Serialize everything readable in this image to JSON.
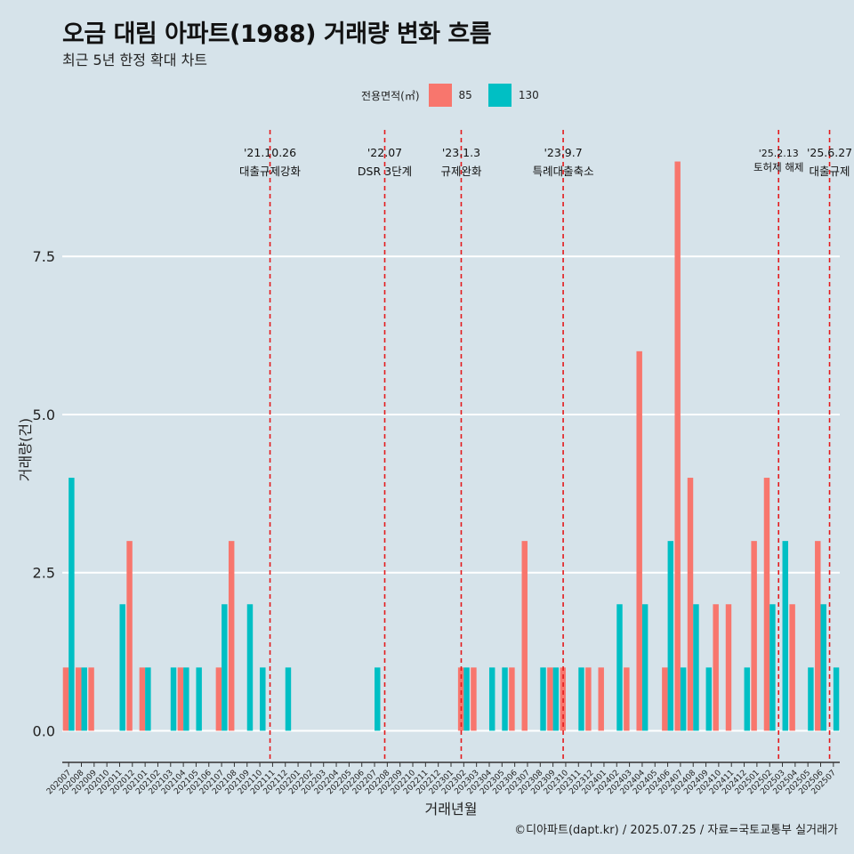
{
  "title": "오금 대림 아파트(1988) 거래량 변화 흐름",
  "subtitle": "최근 5년 한정 확대 차트",
  "caption": "©디아파트(dapt.kr) / 2025.07.25 / 자료=국토교통부 실거래가",
  "legend": {
    "title": "전용면적(㎡)",
    "items": [
      {
        "label": "85",
        "color": "#f8766d"
      },
      {
        "label": "130",
        "color": "#00bfc4"
      }
    ]
  },
  "chart_data": {
    "type": "bar",
    "xlabel": "거래년월",
    "ylabel": "거래량(건)",
    "ylim": [
      -0.5,
      9.5
    ],
    "yticks": [
      "0.0",
      "2.5",
      "5.0",
      "7.5"
    ],
    "ytick_values": [
      0,
      2.5,
      5,
      7.5
    ],
    "grid": true,
    "categories": [
      "202007",
      "202008",
      "202009",
      "202010",
      "202011",
      "202012",
      "202101",
      "202102",
      "202103",
      "202104",
      "202105",
      "202106",
      "202107",
      "202108",
      "202109",
      "202110",
      "202111",
      "202112",
      "202201",
      "202202",
      "202203",
      "202204",
      "202205",
      "202206",
      "202207",
      "202208",
      "202209",
      "202210",
      "202211",
      "202212",
      "202301",
      "202302",
      "202303",
      "202304",
      "202305",
      "202306",
      "202307",
      "202308",
      "202309",
      "202310",
      "202311",
      "202312",
      "202401",
      "202402",
      "202403",
      "202404",
      "202405",
      "202406",
      "202407",
      "202408",
      "202409",
      "202410",
      "202411",
      "202412",
      "202501",
      "202502",
      "202503",
      "202504",
      "202505",
      "202506",
      "202507"
    ],
    "tick_labels": [
      "202007",
      "202008",
      "202009",
      "202010",
      "202011",
      "202012",
      "202101",
      "202102",
      "202103",
      "202104",
      "202105",
      "202106",
      "202107",
      "202108",
      "202109",
      "202110",
      "202111",
      "202112",
      "202201",
      "202202",
      "202203",
      "202204",
      "202205",
      "202206",
      "202207",
      "202208",
      "202209",
      "202210",
      "202211",
      "202212",
      "202301",
      "202302",
      "202303",
      "202304",
      "202305",
      "202306",
      "202307",
      "202308",
      "202309",
      "202310",
      "202311",
      "202312",
      "202401",
      "202402",
      "202403",
      "202404",
      "202405",
      "202406",
      "202407",
      "202408",
      "202409",
      "202410",
      "202411",
      "202412",
      "202501",
      "202502",
      "202503",
      "202504",
      "202505",
      "202506",
      "202507"
    ],
    "series": [
      {
        "name": "85",
        "color": "#f8766d",
        "values": [
          1,
          1,
          1,
          0,
          0,
          3,
          1,
          0,
          0,
          1,
          0,
          0,
          1,
          3,
          0,
          0,
          0,
          0,
          0,
          0,
          0,
          0,
          0,
          0,
          0,
          0,
          0,
          0,
          0,
          0,
          0,
          1,
          1,
          0,
          0,
          1,
          3,
          0,
          1,
          1,
          0,
          1,
          1,
          0,
          1,
          6,
          0,
          1,
          9,
          4,
          0,
          2,
          2,
          0,
          3,
          4,
          0,
          2,
          0,
          3,
          0
        ]
      },
      {
        "name": "130",
        "color": "#00bfc4",
        "values": [
          4,
          1,
          0,
          0,
          2,
          0,
          1,
          0,
          1,
          1,
          1,
          0,
          2,
          0,
          2,
          1,
          0,
          1,
          0,
          0,
          0,
          0,
          0,
          0,
          1,
          0,
          0,
          0,
          0,
          0,
          0,
          1,
          0,
          1,
          1,
          0,
          0,
          1,
          1,
          0,
          1,
          0,
          0,
          2,
          0,
          2,
          0,
          3,
          1,
          2,
          1,
          0,
          0,
          1,
          0,
          2,
          3,
          0,
          1,
          2,
          1
        ]
      }
    ],
    "events": [
      {
        "date": "'21.10.26",
        "label": "대출규제강화",
        "index": 15.8
      },
      {
        "date": "'22.07",
        "label": "DSR 3단계",
        "index": 24.8
      },
      {
        "date": "'23.1.3",
        "label": "규제완화",
        "index": 30.8
      },
      {
        "date": "'23.9.7",
        "label": "특례대출축소",
        "index": 38.8
      },
      {
        "date": "'25.2.13",
        "label": "토허제 해제",
        "index": 55.7
      },
      {
        "date": "'25.6.27",
        "label": "대출규제",
        "index": 59.7
      }
    ]
  }
}
